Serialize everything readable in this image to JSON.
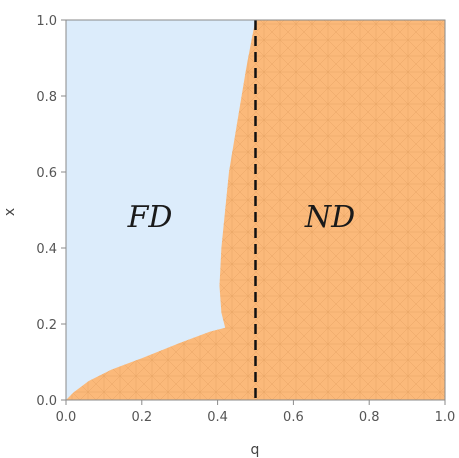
{
  "chart_data": {
    "type": "area",
    "title": "",
    "xlabel": "q",
    "ylabel": "x",
    "xlim": [
      0.0,
      1.0
    ],
    "ylim": [
      0.0,
      1.0
    ],
    "x_ticks": [
      "0.0",
      "0.2",
      "0.4",
      "0.6",
      "0.8",
      "1.0"
    ],
    "y_ticks": [
      "0.0",
      "0.2",
      "0.4",
      "0.6",
      "0.8",
      "1.0"
    ],
    "grid": false,
    "regions": [
      {
        "name": "FD",
        "label": "FD",
        "color": "#dcecfb"
      },
      {
        "name": "ND",
        "label": "ND",
        "color": "#fbb97a"
      }
    ],
    "boundary": {
      "x": [
        0.0,
        0.02,
        0.06,
        0.12,
        0.2,
        0.3,
        0.38,
        0.42,
        0.41,
        0.405,
        0.41,
        0.43,
        0.455,
        0.475,
        0.49,
        0.5
      ],
      "y": [
        0.0,
        0.02,
        0.05,
        0.08,
        0.11,
        0.15,
        0.18,
        0.19,
        0.23,
        0.3,
        0.4,
        0.6,
        0.75,
        0.87,
        0.95,
        1.0
      ]
    },
    "threshold_line": {
      "q": 0.5,
      "style": "dashed",
      "color": "#111111"
    }
  }
}
